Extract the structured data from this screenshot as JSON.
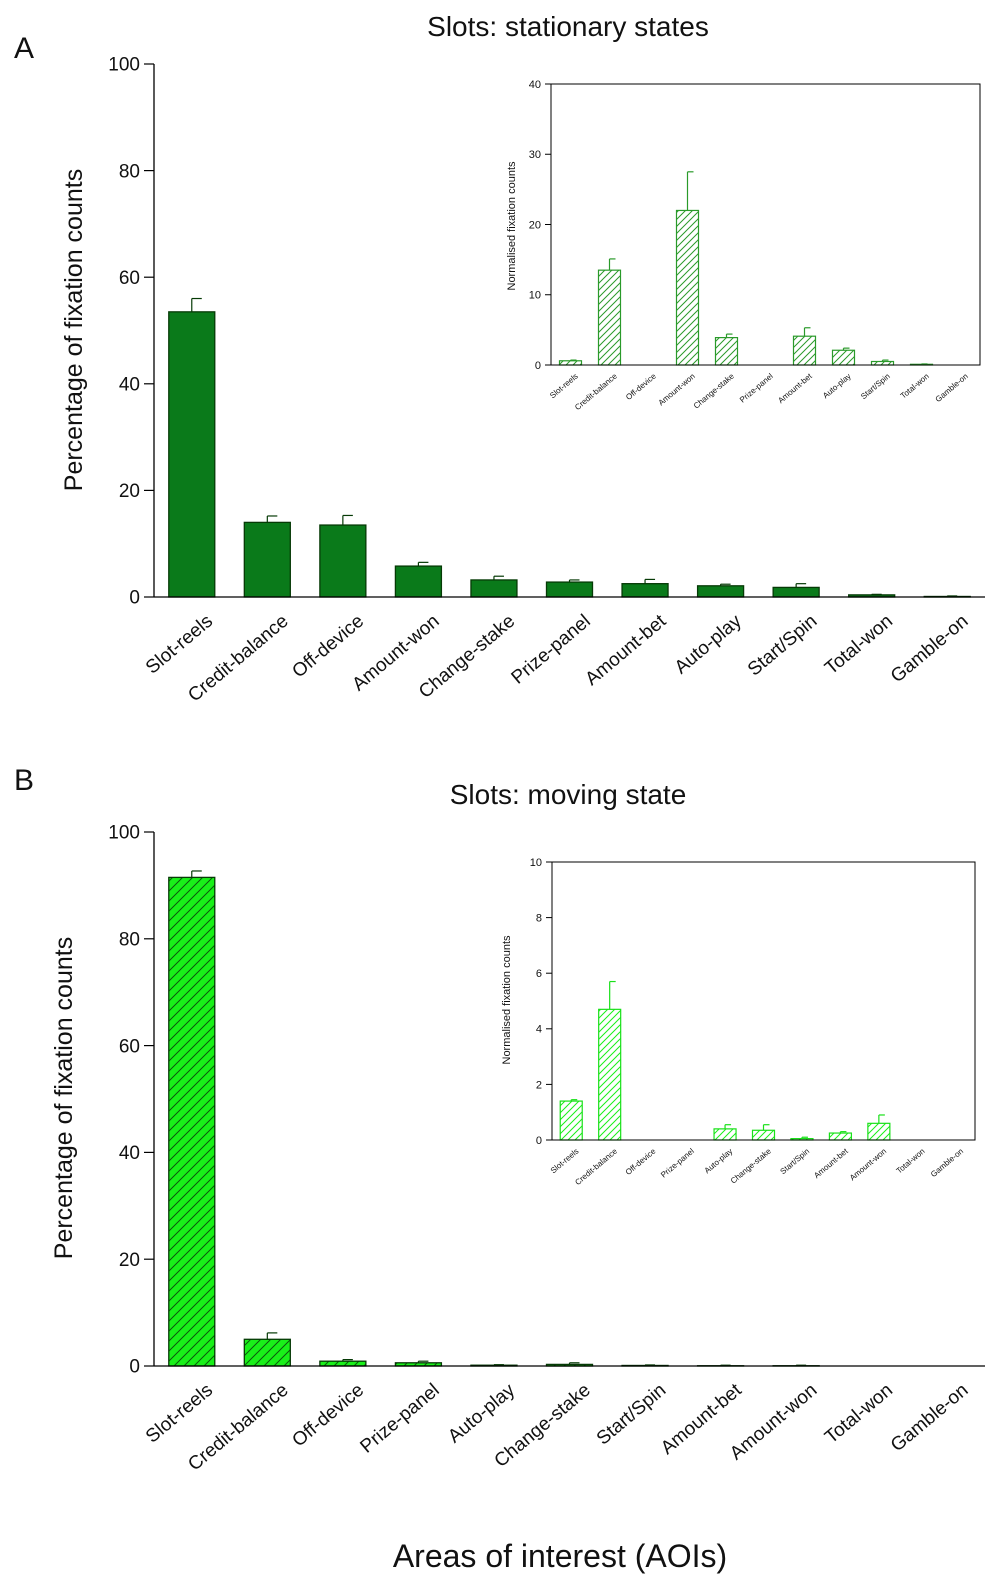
{
  "figure": {
    "xlabel": "Areas of interest (AOIs)"
  },
  "colors": {
    "dark_green": "#0a7a1a",
    "light_green": "#19f019",
    "axis": "#000000"
  },
  "chart_data": [
    {
      "panel_label": "A",
      "title": "Slots: stationary states",
      "type": "bar",
      "pattern": "solid",
      "color": "#0a7a1a",
      "ylabel": "Percentage of fixation counts",
      "ylim": [
        0,
        100
      ],
      "yticks": [
        0,
        20,
        40,
        60,
        80,
        100
      ],
      "categories": [
        "Slot-reels",
        "Credit-balance",
        "Off-device",
        "Amount-won",
        "Change-stake",
        "Prize-panel",
        "Amount-bet",
        "Auto-play",
        "Start/Spin",
        "Total-won",
        "Gamble-on"
      ],
      "values": [
        53.5,
        14,
        13.5,
        5.8,
        3.2,
        2.8,
        2.5,
        2.1,
        1.8,
        0.4,
        0.1
      ],
      "errors": [
        2.5,
        1.2,
        1.8,
        0.7,
        0.7,
        0.4,
        0.8,
        0.3,
        0.7,
        0.1,
        0.1
      ],
      "inset": {
        "type": "bar",
        "pattern": "hatched",
        "ylabel": "Normalised fixation counts",
        "ylim": [
          0,
          40
        ],
        "yticks": [
          0,
          10,
          20,
          30,
          40
        ],
        "categories": [
          "Slot-reels",
          "Credit-balance",
          "Off-device",
          "Amount-won",
          "Change-stake",
          "Prize-panel",
          "Amount-bet",
          "Auto-play",
          "Start/Spin",
          "Total-won",
          "Gamble-on"
        ],
        "values": [
          0.6,
          13.5,
          0,
          22,
          3.9,
          0,
          4.1,
          2.1,
          0.5,
          0.1,
          0
        ],
        "errors": [
          0.1,
          1.6,
          0,
          5.5,
          0.5,
          0,
          1.2,
          0.3,
          0.2,
          0.05,
          0
        ]
      }
    },
    {
      "panel_label": "B",
      "title": "Slots: moving state",
      "type": "bar",
      "pattern": "hatched",
      "color": "#19f019",
      "ylabel": "Percentage of fixation counts",
      "ylim": [
        0,
        100
      ],
      "yticks": [
        0,
        20,
        40,
        60,
        80,
        100
      ],
      "categories": [
        "Slot-reels",
        "Credit-balance",
        "Off-device",
        "Prize-panel",
        "Auto-play",
        "Change-stake",
        "Start/Spin",
        "Amount-bet",
        "Amount-won",
        "Total-won",
        "Gamble-on"
      ],
      "values": [
        91.5,
        5,
        0.9,
        0.6,
        0.15,
        0.3,
        0.1,
        0.05,
        0.05,
        0,
        0
      ],
      "errors": [
        1.2,
        1.2,
        0.3,
        0.3,
        0.1,
        0.3,
        0.1,
        0.1,
        0.1,
        0,
        0
      ],
      "inset": {
        "type": "bar",
        "pattern": "hatched",
        "ylabel": "Normalised fixation counts",
        "ylim": [
          0,
          10
        ],
        "yticks": [
          0,
          2,
          4,
          6,
          8,
          10
        ],
        "categories": [
          "Slot-reels",
          "Credit-balance",
          "Off-device",
          "Prize-panel",
          "Auto-play",
          "Change-stake",
          "Start/Spin",
          "Amount-bet",
          "Amount-won",
          "Total-won",
          "Gamble-on"
        ],
        "values": [
          1.4,
          4.7,
          0,
          0,
          0.4,
          0.35,
          0.05,
          0.25,
          0.6,
          0,
          0
        ],
        "errors": [
          0.05,
          1.0,
          0,
          0,
          0.15,
          0.2,
          0.05,
          0.05,
          0.3,
          0,
          0
        ]
      }
    }
  ]
}
